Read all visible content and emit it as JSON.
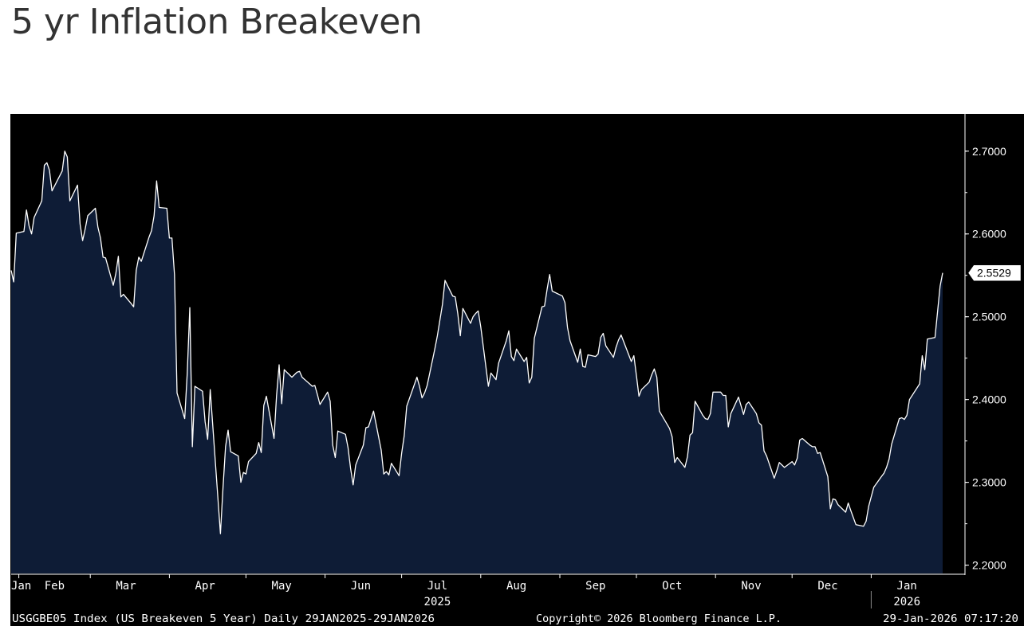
{
  "page": {
    "title": "5 yr Inflation Breakeven"
  },
  "chart_data": {
    "type": "area",
    "title": "5 yr Inflation Breakeven",
    "series": [
      {
        "name": "US Breakeven 5 Year",
        "x": [
          "2025-01-29",
          "2025-01-30",
          "2025-01-31",
          "2025-02-03",
          "2025-02-04",
          "2025-02-05",
          "2025-02-06",
          "2025-02-07",
          "2025-02-10",
          "2025-02-11",
          "2025-02-12",
          "2025-02-13",
          "2025-02-14",
          "2025-02-18",
          "2025-02-19",
          "2025-02-20",
          "2025-02-21",
          "2025-02-24",
          "2025-02-25",
          "2025-02-26",
          "2025-02-27",
          "2025-02-28",
          "2025-03-03",
          "2025-03-04",
          "2025-03-05",
          "2025-03-06",
          "2025-03-07",
          "2025-03-10",
          "2025-03-11",
          "2025-03-12",
          "2025-03-13",
          "2025-03-14",
          "2025-03-17",
          "2025-03-18",
          "2025-03-19",
          "2025-03-20",
          "2025-03-21",
          "2025-03-24",
          "2025-03-25",
          "2025-03-26",
          "2025-03-27",
          "2025-03-28",
          "2025-03-31",
          "2025-04-01",
          "2025-04-02",
          "2025-04-03",
          "2025-04-04",
          "2025-04-07",
          "2025-04-08",
          "2025-04-09",
          "2025-04-10",
          "2025-04-11",
          "2025-04-14",
          "2025-04-15",
          "2025-04-16",
          "2025-04-17",
          "2025-04-21",
          "2025-04-22",
          "2025-04-23",
          "2025-04-24",
          "2025-04-25",
          "2025-04-28",
          "2025-04-29",
          "2025-04-30",
          "2025-05-01",
          "2025-05-02",
          "2025-05-05",
          "2025-05-06",
          "2025-05-07",
          "2025-05-08",
          "2025-05-09",
          "2025-05-12",
          "2025-05-13",
          "2025-05-14",
          "2025-05-15",
          "2025-05-16",
          "2025-05-19",
          "2025-05-20",
          "2025-05-21",
          "2025-05-22",
          "2025-05-23",
          "2025-05-27",
          "2025-05-28",
          "2025-05-29",
          "2025-05-30",
          "2025-06-02",
          "2025-06-03",
          "2025-06-04",
          "2025-06-05",
          "2025-06-06",
          "2025-06-09",
          "2025-06-10",
          "2025-06-11",
          "2025-06-12",
          "2025-06-13",
          "2025-06-16",
          "2025-06-17",
          "2025-06-18",
          "2025-06-20",
          "2025-06-23",
          "2025-06-24",
          "2025-06-25",
          "2025-06-26",
          "2025-06-27",
          "2025-06-30",
          "2025-07-01",
          "2025-07-02",
          "2025-07-03",
          "2025-07-07",
          "2025-07-08",
          "2025-07-09",
          "2025-07-10",
          "2025-07-11",
          "2025-07-14",
          "2025-07-15",
          "2025-07-16",
          "2025-07-17",
          "2025-07-18",
          "2025-07-21",
          "2025-07-22",
          "2025-07-23",
          "2025-07-24",
          "2025-07-25",
          "2025-07-28",
          "2025-07-29",
          "2025-07-30",
          "2025-07-31",
          "2025-08-01",
          "2025-08-04",
          "2025-08-05",
          "2025-08-06",
          "2025-08-07",
          "2025-08-08",
          "2025-08-11",
          "2025-08-12",
          "2025-08-13",
          "2025-08-14",
          "2025-08-15",
          "2025-08-18",
          "2025-08-19",
          "2025-08-20",
          "2025-08-21",
          "2025-08-22",
          "2025-08-25",
          "2025-08-26",
          "2025-08-27",
          "2025-08-28",
          "2025-08-29",
          "2025-09-02",
          "2025-09-03",
          "2025-09-04",
          "2025-09-05",
          "2025-09-08",
          "2025-09-09",
          "2025-09-10",
          "2025-09-11",
          "2025-09-12",
          "2025-09-15",
          "2025-09-16",
          "2025-09-17",
          "2025-09-18",
          "2025-09-19",
          "2025-09-22",
          "2025-09-23",
          "2025-09-24",
          "2025-09-25",
          "2025-09-26",
          "2025-09-29",
          "2025-09-30",
          "2025-10-01",
          "2025-10-02",
          "2025-10-03",
          "2025-10-06",
          "2025-10-07",
          "2025-10-08",
          "2025-10-09",
          "2025-10-10",
          "2025-10-14",
          "2025-10-15",
          "2025-10-16",
          "2025-10-17",
          "2025-10-20",
          "2025-10-21",
          "2025-10-22",
          "2025-10-23",
          "2025-10-24",
          "2025-10-27",
          "2025-10-28",
          "2025-10-29",
          "2025-10-30",
          "2025-10-31",
          "2025-11-03",
          "2025-11-04",
          "2025-11-05",
          "2025-11-06",
          "2025-11-07",
          "2025-11-10",
          "2025-11-12",
          "2025-11-13",
          "2025-11-14",
          "2025-11-17",
          "2025-11-18",
          "2025-11-19",
          "2025-11-20",
          "2025-11-21",
          "2025-11-24",
          "2025-11-25",
          "2025-11-26",
          "2025-11-28",
          "2025-12-01",
          "2025-12-02",
          "2025-12-03",
          "2025-12-04",
          "2025-12-05",
          "2025-12-08",
          "2025-12-09",
          "2025-12-10",
          "2025-12-11",
          "2025-12-12",
          "2025-12-15",
          "2025-12-16",
          "2025-12-17",
          "2025-12-18",
          "2025-12-19",
          "2025-12-22",
          "2025-12-23",
          "2025-12-24",
          "2025-12-26",
          "2025-12-29",
          "2025-12-30",
          "2025-12-31",
          "2026-01-02",
          "2026-01-05",
          "2026-01-06",
          "2026-01-07",
          "2026-01-08",
          "2026-01-09",
          "2026-01-12",
          "2026-01-13",
          "2026-01-14",
          "2026-01-15",
          "2026-01-16",
          "2026-01-20",
          "2026-01-21",
          "2026-01-22",
          "2026-01-23",
          "2026-01-26",
          "2026-01-27",
          "2026-01-28",
          "2026-01-29"
        ],
        "values": [
          2.556,
          2.542,
          2.601,
          2.603,
          2.629,
          2.61,
          2.6,
          2.62,
          2.64,
          2.683,
          2.686,
          2.677,
          2.652,
          2.676,
          2.7,
          2.693,
          2.64,
          2.659,
          2.612,
          2.592,
          2.606,
          2.622,
          2.631,
          2.608,
          2.595,
          2.572,
          2.571,
          2.538,
          2.552,
          2.573,
          2.524,
          2.527,
          2.516,
          2.512,
          2.556,
          2.572,
          2.567,
          2.596,
          2.604,
          2.622,
          2.664,
          2.632,
          2.631,
          2.595,
          2.595,
          2.551,
          2.408,
          2.377,
          2.432,
          2.511,
          2.343,
          2.416,
          2.41,
          2.373,
          2.352,
          2.412,
          2.238,
          2.293,
          2.343,
          2.363,
          2.337,
          2.332,
          2.3,
          2.312,
          2.31,
          2.325,
          2.335,
          2.348,
          2.336,
          2.393,
          2.404,
          2.353,
          2.405,
          2.442,
          2.395,
          2.436,
          2.427,
          2.43,
          2.433,
          2.434,
          2.427,
          2.416,
          2.417,
          2.406,
          2.394,
          2.409,
          2.398,
          2.345,
          2.33,
          2.362,
          2.358,
          2.342,
          2.317,
          2.297,
          2.321,
          2.345,
          2.366,
          2.367,
          2.386,
          2.339,
          2.31,
          2.313,
          2.309,
          2.323,
          2.308,
          2.335,
          2.356,
          2.392,
          2.427,
          2.416,
          2.402,
          2.408,
          2.417,
          2.461,
          2.477,
          2.496,
          2.515,
          2.544,
          2.525,
          2.524,
          2.504,
          2.477,
          2.51,
          2.492,
          2.5,
          2.504,
          2.507,
          2.488,
          2.416,
          2.432,
          2.428,
          2.424,
          2.444,
          2.471,
          2.483,
          2.452,
          2.447,
          2.461,
          2.446,
          2.451,
          2.42,
          2.427,
          2.474,
          2.512,
          2.513,
          2.533,
          2.551,
          2.531,
          2.525,
          2.517,
          2.487,
          2.471,
          2.445,
          2.461,
          2.44,
          2.439,
          2.454,
          2.452,
          2.455,
          2.475,
          2.48,
          2.465,
          2.451,
          2.463,
          2.472,
          2.478,
          2.47,
          2.446,
          2.453,
          2.429,
          2.404,
          2.412,
          2.421,
          2.43,
          2.437,
          2.427,
          2.386,
          2.365,
          2.355,
          2.324,
          2.33,
          2.318,
          2.331,
          2.357,
          2.36,
          2.398,
          2.381,
          2.377,
          2.376,
          2.383,
          2.409,
          2.409,
          2.405,
          2.405,
          2.367,
          2.383,
          2.403,
          2.382,
          2.394,
          2.397,
          2.383,
          2.372,
          2.369,
          2.338,
          2.332,
          2.305,
          2.314,
          2.324,
          2.318,
          2.325,
          2.321,
          2.329,
          2.351,
          2.353,
          2.345,
          2.343,
          2.343,
          2.335,
          2.336,
          2.307,
          2.268,
          2.28,
          2.279,
          2.273,
          2.264,
          2.275,
          2.266,
          2.249,
          2.247,
          2.253,
          2.271,
          2.294,
          2.307,
          2.311,
          2.318,
          2.328,
          2.346,
          2.377,
          2.378,
          2.376,
          2.381,
          2.4,
          2.419,
          2.453,
          2.436,
          2.473,
          2.475,
          2.506,
          2.537,
          2.553
        ]
      }
    ],
    "y_axis": {
      "ticks": [
        "2.7000",
        "2.6000",
        "2.5000",
        "2.4000",
        "2.3000",
        "2.2000"
      ],
      "range": [
        2.19,
        2.745
      ],
      "last_value_label": "2.5529",
      "position": "right"
    },
    "x_axis": {
      "range": [
        "2025-01-29",
        "2026-01-29"
      ],
      "month_labels": [
        {
          "label": "Jan",
          "date": "2025-01-31"
        },
        {
          "label": "Feb",
          "date": "2025-02-15"
        },
        {
          "label": "Mar",
          "date": "2025-03-15"
        },
        {
          "label": "Apr",
          "date": "2025-04-15"
        },
        {
          "label": "May",
          "date": "2025-05-15"
        },
        {
          "label": "Jun",
          "date": "2025-06-15"
        },
        {
          "label": "Jul",
          "date": "2025-07-15"
        },
        {
          "label": "Aug",
          "date": "2025-08-15"
        },
        {
          "label": "Sep",
          "date": "2025-09-15"
        },
        {
          "label": "Oct",
          "date": "2025-10-15"
        },
        {
          "label": "Nov",
          "date": "2025-11-15"
        },
        {
          "label": "Dec",
          "date": "2025-12-15"
        },
        {
          "label": "Jan",
          "date": "2026-01-15"
        }
      ],
      "year_labels": [
        {
          "label": "2025",
          "date": "2025-07-15"
        },
        {
          "label": "2026",
          "date": "2026-01-15"
        }
      ]
    },
    "footer": {
      "left": "USGGBE05 Index (US Breakeven 5 Year) Daily 29JAN2025-29JAN2026",
      "center": "Copyright© 2026 Bloomberg Finance L.P.",
      "right": "29-Jan-2026 07:17:20"
    },
    "colors": {
      "background": "#000000",
      "area_fill": "#0e1c36",
      "line": "#ffffff",
      "axis": "#ffffff",
      "text": "#ffffff"
    },
    "grid": false,
    "legend": "none"
  }
}
